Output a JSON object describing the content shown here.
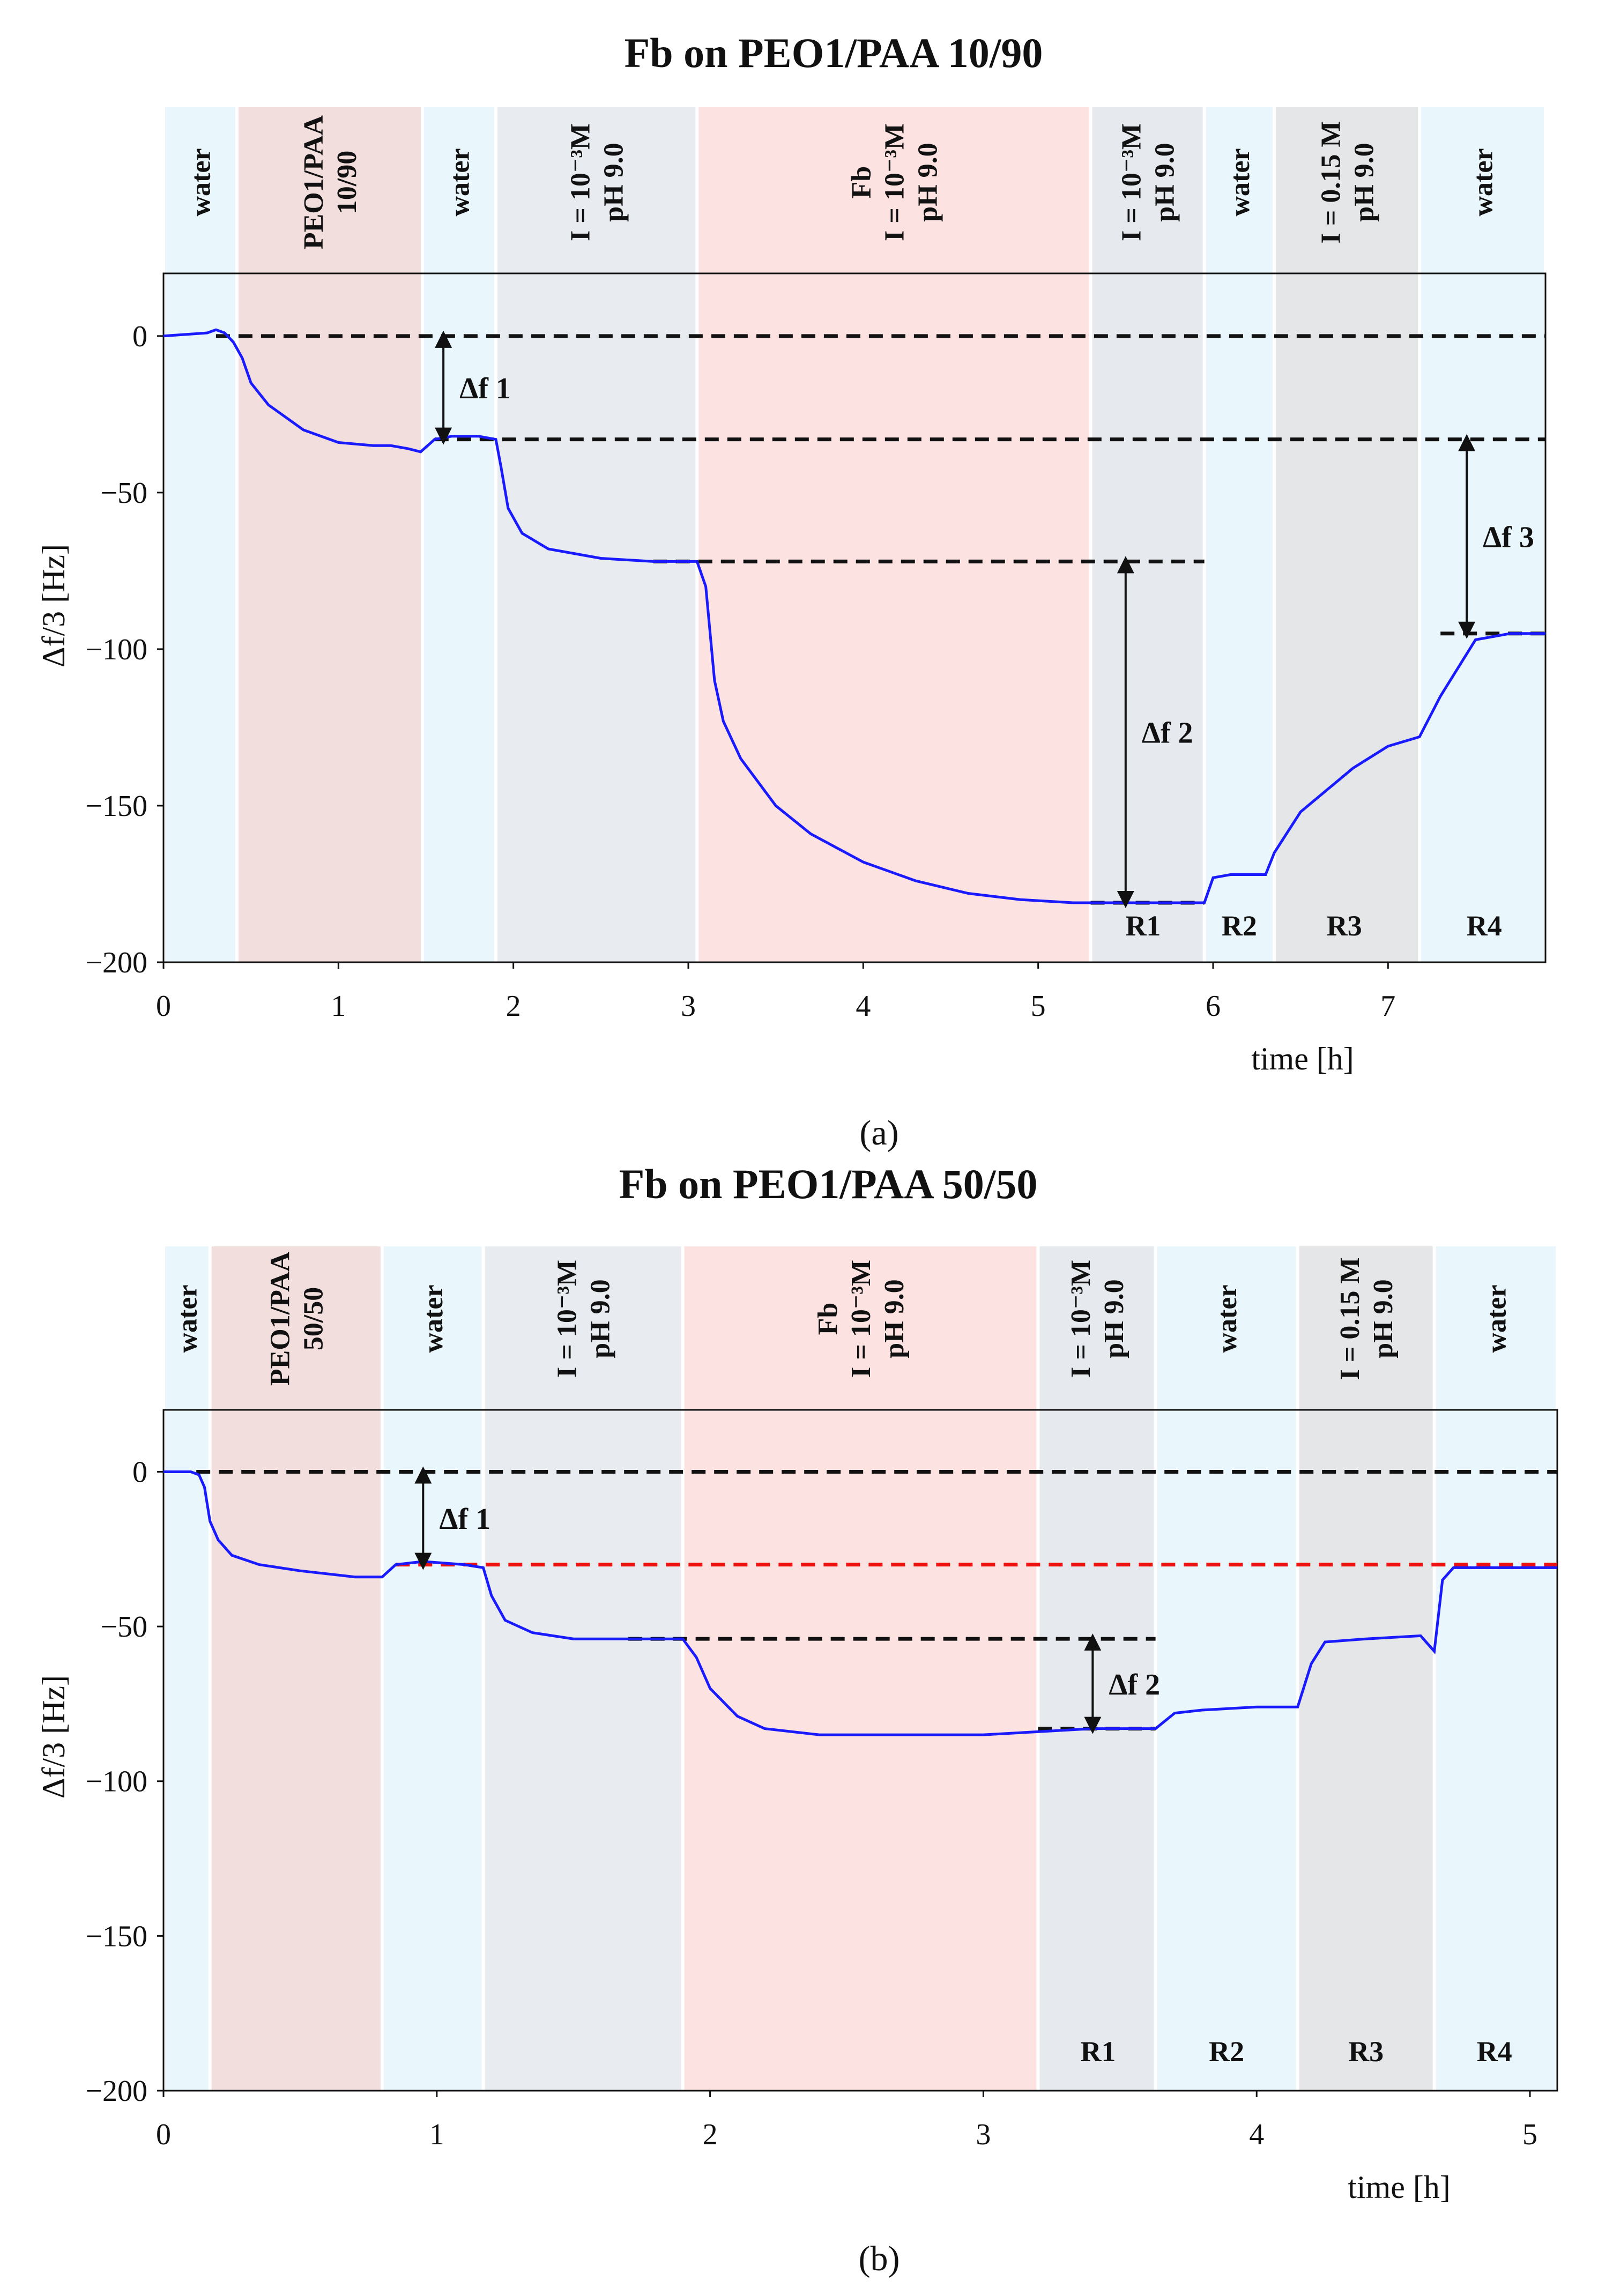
{
  "chart_data": [
    {
      "type": "line",
      "panel": "a",
      "caption": "(a)",
      "title": "Fb on PEO1/PAA 10/90",
      "xlabel": "time [h]",
      "ylabel": "Δf/3 [Hz]",
      "xlim": [
        0,
        7.9
      ],
      "ylim": [
        -200,
        20
      ],
      "xticks": [
        0,
        1,
        2,
        3,
        4,
        5,
        6,
        7
      ],
      "yticks": [
        0,
        -50,
        -100,
        -150,
        -200
      ],
      "bands": [
        {
          "start": 0.0,
          "end": 0.42,
          "color": "#e9f6fb",
          "lines": [
            "water"
          ]
        },
        {
          "start": 0.42,
          "end": 1.48,
          "color": "#f3dede",
          "lines": [
            "PEO1/PAA",
            "10/90"
          ]
        },
        {
          "start": 1.48,
          "end": 1.9,
          "color": "#e9f6fb",
          "lines": [
            "water"
          ]
        },
        {
          "start": 1.9,
          "end": 3.05,
          "color": "#e8ecf1",
          "lines": [
            "I = 10⁻³M",
            "pH 9.0"
          ]
        },
        {
          "start": 3.05,
          "end": 5.3,
          "color": "#fde2e2",
          "lines": [
            "Fb",
            "I = 10⁻³M",
            "pH 9.0"
          ]
        },
        {
          "start": 5.3,
          "end": 5.95,
          "color": "#e6e9ee",
          "lines": [
            "I = 10⁻³M",
            "pH 9.0"
          ]
        },
        {
          "start": 5.95,
          "end": 6.35,
          "color": "#e9f6fb",
          "lines": [
            "water"
          ]
        },
        {
          "start": 6.35,
          "end": 7.18,
          "color": "#e4e6e8",
          "lines": [
            "I = 0.15 M",
            "pH 9.0"
          ]
        },
        {
          "start": 7.18,
          "end": 7.9,
          "color": "#e9f6fb",
          "lines": [
            "water"
          ]
        }
      ],
      "series": [
        {
          "name": "Δf/3",
          "color": "#1a1aff",
          "x": [
            0,
            0.25,
            0.3,
            0.35,
            0.4,
            0.45,
            0.5,
            0.6,
            0.8,
            1.0,
            1.2,
            1.3,
            1.4,
            1.47,
            1.55,
            1.65,
            1.8,
            1.9,
            1.93,
            1.97,
            2.05,
            2.2,
            2.5,
            2.8,
            3.0,
            3.05,
            3.1,
            3.15,
            3.2,
            3.3,
            3.5,
            3.7,
            4.0,
            4.3,
            4.6,
            4.9,
            5.2,
            5.5,
            5.95,
            6.0,
            6.1,
            6.3,
            6.35,
            6.5,
            6.8,
            7.0,
            7.18,
            7.3,
            7.5,
            7.7,
            7.9
          ],
          "y": [
            0,
            1,
            2,
            1,
            -2,
            -7,
            -15,
            -22,
            -30,
            -34,
            -35,
            -35,
            -36,
            -37,
            -33,
            -32,
            -32,
            -33,
            -42,
            -55,
            -63,
            -68,
            -71,
            -72,
            -72,
            -72,
            -80,
            -110,
            -123,
            -135,
            -150,
            -159,
            -168,
            -174,
            -178,
            -180,
            -181,
            -181,
            -181,
            -173,
            -172,
            -172,
            -165,
            -152,
            -138,
            -131,
            -128,
            -115,
            -97,
            -95,
            -95
          ]
        }
      ],
      "reference_lines": [
        {
          "y": 0,
          "x_start": 0.3,
          "x_end": 7.9,
          "color": "black"
        },
        {
          "y": -33,
          "x_start": 1.55,
          "x_end": 7.9,
          "color": "black"
        },
        {
          "y": -72,
          "x_start": 2.8,
          "x_end": 5.95,
          "color": "black"
        },
        {
          "y": -181,
          "x_start": 5.3,
          "x_end": 5.95,
          "color": "black"
        },
        {
          "y": -95,
          "x_start": 7.3,
          "x_end": 7.9,
          "color": "black"
        }
      ],
      "arrows": [
        {
          "label": "Δf 1",
          "x": 1.6,
          "y_from": 0,
          "y_to": -33
        },
        {
          "label": "Δf 2",
          "x": 5.5,
          "y_from": -72,
          "y_to": -181
        },
        {
          "label": "Δf 3",
          "x": 7.45,
          "y_from": -33,
          "y_to": -95
        }
      ],
      "regions": [
        {
          "label": "R1",
          "x": 5.6
        },
        {
          "label": "R2",
          "x": 6.15
        },
        {
          "label": "R3",
          "x": 6.75
        },
        {
          "label": "R4",
          "x": 7.55
        }
      ]
    },
    {
      "type": "line",
      "panel": "b",
      "caption": "(b)",
      "title": "Fb on PEO1/PAA 50/50",
      "xlabel": "time [h]",
      "ylabel": "Δf/3 [Hz]",
      "xlim": [
        0,
        5.1
      ],
      "ylim": [
        -200,
        20
      ],
      "xticks": [
        0,
        1,
        2,
        3,
        4,
        5
      ],
      "yticks": [
        0,
        -50,
        -100,
        -150,
        -200
      ],
      "bands": [
        {
          "start": 0.0,
          "end": 0.17,
          "color": "#e9f6fb",
          "lines": [
            "water"
          ]
        },
        {
          "start": 0.17,
          "end": 0.8,
          "color": "#f3dede",
          "lines": [
            "PEO1/PAA",
            "50/50"
          ]
        },
        {
          "start": 0.8,
          "end": 1.17,
          "color": "#e9f6fb",
          "lines": [
            "water"
          ]
        },
        {
          "start": 1.17,
          "end": 1.9,
          "color": "#e8ecf1",
          "lines": [
            "I = 10⁻³M",
            "pH 9.0"
          ]
        },
        {
          "start": 1.9,
          "end": 3.2,
          "color": "#fde2e2",
          "lines": [
            "Fb",
            "I = 10⁻³M",
            "pH 9.0"
          ]
        },
        {
          "start": 3.2,
          "end": 3.63,
          "color": "#e6e9ee",
          "lines": [
            "I = 10⁻³M",
            "pH 9.0"
          ]
        },
        {
          "start": 3.63,
          "end": 4.15,
          "color": "#e9f6fb",
          "lines": [
            "water"
          ]
        },
        {
          "start": 4.15,
          "end": 4.65,
          "color": "#e4e6e8",
          "lines": [
            "I = 0.15 M",
            "pH 9.0"
          ]
        },
        {
          "start": 4.65,
          "end": 5.1,
          "color": "#e9f6fb",
          "lines": [
            "water"
          ]
        }
      ],
      "series": [
        {
          "name": "Δf/3",
          "color": "#1a1aff",
          "x": [
            0,
            0.1,
            0.13,
            0.15,
            0.17,
            0.2,
            0.25,
            0.35,
            0.5,
            0.7,
            0.8,
            0.85,
            0.95,
            1.1,
            1.17,
            1.2,
            1.25,
            1.35,
            1.5,
            1.7,
            1.9,
            1.95,
            2.0,
            2.1,
            2.2,
            2.4,
            2.7,
            3.0,
            3.2,
            3.4,
            3.63,
            3.7,
            3.8,
            4.0,
            4.15,
            4.2,
            4.25,
            4.4,
            4.6,
            4.65,
            4.68,
            4.72,
            4.8,
            5.0,
            5.1
          ],
          "y": [
            0,
            0,
            -1,
            -5,
            -16,
            -22,
            -27,
            -30,
            -32,
            -34,
            -34,
            -30,
            -29,
            -30,
            -31,
            -40,
            -48,
            -52,
            -54,
            -54,
            -54,
            -60,
            -70,
            -79,
            -83,
            -85,
            -85,
            -85,
            -84,
            -83,
            -83,
            -78,
            -77,
            -76,
            -76,
            -62,
            -55,
            -54,
            -53,
            -58,
            -35,
            -31,
            -31,
            -31,
            -31
          ]
        }
      ],
      "reference_lines": [
        {
          "y": 0,
          "x_start": 0.12,
          "x_end": 5.1,
          "color": "black"
        },
        {
          "y": -30,
          "x_start": 0.85,
          "x_end": 5.1,
          "color": "red"
        },
        {
          "y": -54,
          "x_start": 1.7,
          "x_end": 3.63,
          "color": "black"
        },
        {
          "y": -83,
          "x_start": 3.2,
          "x_end": 3.63,
          "color": "black"
        }
      ],
      "arrows": [
        {
          "label": "Δf 1",
          "x": 0.95,
          "y_from": 0,
          "y_to": -30
        },
        {
          "label": "Δf 2",
          "x": 3.4,
          "y_from": -54,
          "y_to": -83
        }
      ],
      "regions": [
        {
          "label": "R1",
          "x": 3.42
        },
        {
          "label": "R2",
          "x": 3.89
        },
        {
          "label": "R3",
          "x": 4.4
        },
        {
          "label": "R4",
          "x": 4.87
        }
      ]
    }
  ]
}
